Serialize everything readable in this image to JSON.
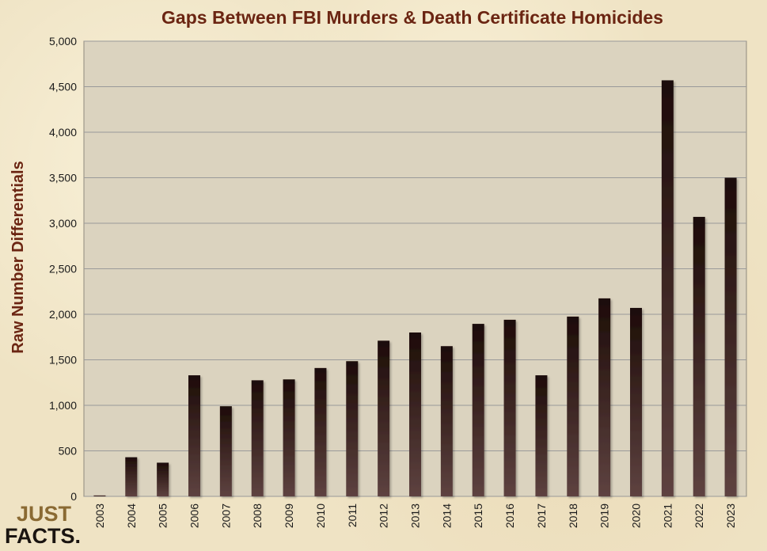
{
  "chart_data": {
    "type": "bar",
    "title": "Gaps Between FBI Murders & Death Certificate Homicides",
    "xlabel": "",
    "ylabel": "Raw Number Differentials",
    "categories": [
      "2003",
      "2004",
      "2005",
      "2006",
      "2007",
      "2008",
      "2009",
      "2010",
      "2011",
      "2012",
      "2013",
      "2014",
      "2015",
      "2016",
      "2017",
      "2018",
      "2019",
      "2020",
      "2021",
      "2022",
      "2023"
    ],
    "values": [
      10,
      430,
      370,
      1330,
      990,
      1275,
      1285,
      1410,
      1485,
      1710,
      1800,
      1650,
      1895,
      1940,
      1330,
      1975,
      2175,
      2070,
      4570,
      3070,
      3500
    ],
    "y_ticks": [
      "0",
      "500",
      "1,000",
      "1,500",
      "2,000",
      "2,500",
      "3,000",
      "3,500",
      "4,000",
      "4,500",
      "5,000"
    ],
    "ylim": [
      0,
      5000
    ],
    "grid": true,
    "legend": "none"
  },
  "logo": {
    "line1": "JUST",
    "line2": "FACTS."
  },
  "colors": {
    "plot_background": "#dbd3bf",
    "gridline": "#9a9a9a",
    "bar_top": "#1d0c08",
    "bar_bottom": "#5e4240",
    "title": "#6b2512"
  }
}
